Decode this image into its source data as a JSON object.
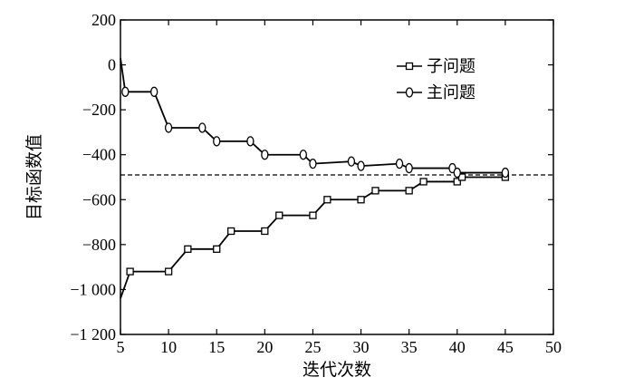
{
  "chart_data": {
    "type": "line",
    "xlabel": "迭代次数",
    "ylabel": "目标函数值",
    "xlim": [
      5,
      50
    ],
    "ylim": [
      -1200,
      200
    ],
    "x_ticks": [
      5,
      10,
      15,
      20,
      25,
      30,
      35,
      40,
      45,
      50
    ],
    "x_tick_labels": [
      "5",
      "10",
      "15",
      "20",
      "25",
      "30",
      "35",
      "40",
      "45",
      "50"
    ],
    "y_ticks": [
      200,
      0,
      -200,
      -400,
      -600,
      -800,
      -1000,
      -1200
    ],
    "y_tick_labels": [
      "200",
      "0",
      "−200",
      "−400",
      "−600",
      "−800",
      "−1 000",
      "−1 200"
    ],
    "legend_position": "top-right",
    "reference_line": {
      "y": -490,
      "style": "dashed"
    },
    "series": [
      {
        "name": "子问题",
        "marker": "square",
        "x": [
          5,
          6,
          10,
          12,
          15,
          16.5,
          20,
          21.5,
          25,
          26.5,
          30,
          31.5,
          35,
          36.5,
          40,
          40.5,
          45
        ],
        "y": [
          -1040,
          -920,
          -920,
          -820,
          -820,
          -740,
          -740,
          -670,
          -670,
          -600,
          -600,
          -560,
          -560,
          -520,
          -520,
          -500,
          -500
        ],
        "marker_mask": [
          false,
          true,
          true,
          true,
          true,
          true,
          true,
          true,
          true,
          true,
          true,
          true,
          true,
          true,
          true,
          true,
          true
        ]
      },
      {
        "name": "主问题",
        "marker": "circle",
        "x": [
          5,
          5.5,
          8.5,
          10,
          13.5,
          15,
          18.5,
          20,
          24,
          25,
          29,
          30,
          34,
          35,
          39.5,
          40,
          45
        ],
        "y": [
          30,
          -120,
          -120,
          -280,
          -280,
          -340,
          -340,
          -400,
          -400,
          -440,
          -430,
          -450,
          -440,
          -460,
          -460,
          -480,
          -480
        ],
        "marker_mask": [
          false,
          true,
          true,
          true,
          true,
          true,
          true,
          true,
          true,
          true,
          true,
          true,
          true,
          true,
          true,
          true,
          true
        ]
      }
    ]
  }
}
